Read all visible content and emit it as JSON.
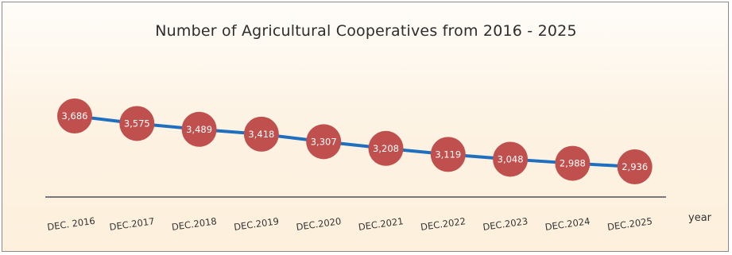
{
  "chart_data": {
    "type": "line",
    "title": "Number of Agricultural Cooperatives from 2016 - 2025",
    "xlabel": "year",
    "ylabel": "",
    "categories": [
      "DEC. 2016",
      "DEC.2017",
      "DEC.2018",
      "DEC.2019",
      "DEC.2020",
      "DEC.2021",
      "DEC.2022",
      "DEC.2023",
      "DEC.2024",
      "DEC.2025"
    ],
    "values": [
      3686,
      3575,
      3489,
      3418,
      3307,
      3208,
      3119,
      3048,
      2988,
      2936
    ],
    "value_labels": [
      "3,686",
      "3,575",
      "3,489",
      "3,418",
      "3,307",
      "3,208",
      "3,119",
      "3,048",
      "2,988",
      "2,936"
    ],
    "line_color": "#1f6fbf",
    "marker_color": "#c0504d",
    "grid": false
  }
}
